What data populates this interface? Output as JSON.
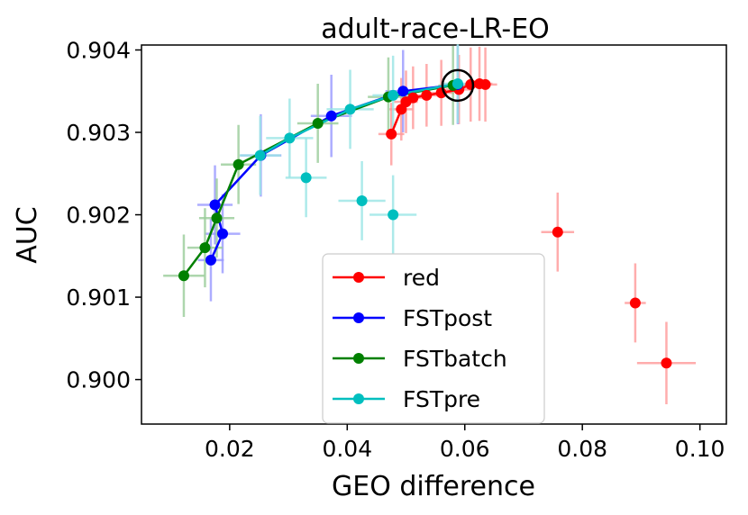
{
  "chart_data": {
    "type": "line",
    "title": "adult-race-LR-EO",
    "xlabel": "GEO difference",
    "ylabel": "AUC",
    "xlim": [
      0.005,
      0.1045
    ],
    "ylim": [
      0.89946,
      0.90406
    ],
    "xticks": [
      0.02,
      0.04,
      0.06,
      0.08,
      0.1
    ],
    "xtick_labels": [
      "0.02",
      "0.04",
      "0.06",
      "0.08",
      "0.10"
    ],
    "yticks": [
      0.9,
      0.901,
      0.902,
      0.903,
      0.904
    ],
    "ytick_labels": [
      "0.900",
      "0.901",
      "0.902",
      "0.903",
      "0.904"
    ],
    "legend_position": "lower-center",
    "highlight": {
      "x": 0.0588,
      "y": 0.90357,
      "shape": "circle",
      "color": "#000000"
    },
    "series": [
      {
        "name": "red",
        "color": "#ff0000",
        "error_color": "#ff9999",
        "points": [
          {
            "x": 0.0475,
            "y": 0.90298,
            "xerr": 0.0022,
            "yerr": 0.00038
          },
          {
            "x": 0.0492,
            "y": 0.90328,
            "xerr": 0.002,
            "yerr": 0.00038
          },
          {
            "x": 0.05,
            "y": 0.90337,
            "xerr": 0.002,
            "yerr": 0.00038
          },
          {
            "x": 0.0512,
            "y": 0.90342,
            "xerr": 0.002,
            "yerr": 0.00038
          },
          {
            "x": 0.0535,
            "y": 0.90345,
            "xerr": 0.0022,
            "yerr": 0.00038
          },
          {
            "x": 0.056,
            "y": 0.90348,
            "xerr": 0.0022,
            "yerr": 0.0004
          },
          {
            "x": 0.059,
            "y": 0.90352,
            "xerr": 0.0022,
            "yerr": 0.00042
          },
          {
            "x": 0.061,
            "y": 0.90358,
            "xerr": 0.0022,
            "yerr": 0.00045
          },
          {
            "x": 0.0625,
            "y": 0.90359,
            "xerr": 0.0022,
            "yerr": 0.00045
          },
          {
            "x": 0.0635,
            "y": 0.90358,
            "xerr": 0.002,
            "yerr": 0.00045
          }
        ],
        "extra_points": [
          {
            "x": 0.0758,
            "y": 0.90179,
            "xerr": 0.0028,
            "yerr": 0.00048
          },
          {
            "x": 0.089,
            "y": 0.90093,
            "xerr": 0.0018,
            "yerr": 0.00048
          },
          {
            "x": 0.0943,
            "y": 0.9002,
            "xerr": 0.005,
            "yerr": 0.0005
          }
        ]
      },
      {
        "name": "FSTpost",
        "color": "#0000ff",
        "error_color": "#9999ff",
        "points": [
          {
            "x": 0.0168,
            "y": 0.90145,
            "xerr": 0.0022,
            "yerr": 0.0005
          },
          {
            "x": 0.0188,
            "y": 0.90177,
            "xerr": 0.003,
            "yerr": 0.00048
          },
          {
            "x": 0.0175,
            "y": 0.90212,
            "xerr": 0.003,
            "yerr": 0.00048
          },
          {
            "x": 0.0253,
            "y": 0.90272,
            "xerr": 0.0035,
            "yerr": 0.0005
          },
          {
            "x": 0.0373,
            "y": 0.9032,
            "xerr": 0.0035,
            "yerr": 0.0005
          },
          {
            "x": 0.0495,
            "y": 0.9035,
            "xerr": 0.003,
            "yerr": 0.0005
          },
          {
            "x": 0.0588,
            "y": 0.90358,
            "xerr": 0.0025,
            "yerr": 0.00048
          }
        ]
      },
      {
        "name": "FSTbatch",
        "color": "#008000",
        "error_color": "#99cc99",
        "points": [
          {
            "x": 0.0122,
            "y": 0.90126,
            "xerr": 0.0035,
            "yerr": 0.0005
          },
          {
            "x": 0.0158,
            "y": 0.9016,
            "xerr": 0.003,
            "yerr": 0.00048
          },
          {
            "x": 0.0178,
            "y": 0.90196,
            "xerr": 0.003,
            "yerr": 0.00048
          },
          {
            "x": 0.0215,
            "y": 0.90261,
            "xerr": 0.003,
            "yerr": 0.00048
          },
          {
            "x": 0.035,
            "y": 0.90311,
            "xerr": 0.0035,
            "yerr": 0.00048
          },
          {
            "x": 0.047,
            "y": 0.90343,
            "xerr": 0.0035,
            "yerr": 0.00048
          },
          {
            "x": 0.058,
            "y": 0.90357,
            "xerr": 0.0025,
            "yerr": 0.00048
          }
        ]
      },
      {
        "name": "FSTpre",
        "color": "#00bfbf",
        "error_color": "#99e5e5",
        "points": [
          {
            "x": 0.0252,
            "y": 0.90272,
            "xerr": 0.0035,
            "yerr": 0.00048
          },
          {
            "x": 0.0302,
            "y": 0.90293,
            "xerr": 0.004,
            "yerr": 0.00048
          },
          {
            "x": 0.0405,
            "y": 0.90328,
            "xerr": 0.004,
            "yerr": 0.00048
          },
          {
            "x": 0.0478,
            "y": 0.90345,
            "xerr": 0.0035,
            "yerr": 0.00048
          },
          {
            "x": 0.0588,
            "y": 0.90359,
            "xerr": 0.0025,
            "yerr": 0.00048
          }
        ],
        "extra_points": [
          {
            "x": 0.033,
            "y": 0.90245,
            "xerr": 0.0035,
            "yerr": 0.00048
          },
          {
            "x": 0.0425,
            "y": 0.90217,
            "xerr": 0.004,
            "yerr": 0.00048
          },
          {
            "x": 0.0478,
            "y": 0.902,
            "xerr": 0.004,
            "yerr": 0.00048
          }
        ]
      }
    ]
  }
}
